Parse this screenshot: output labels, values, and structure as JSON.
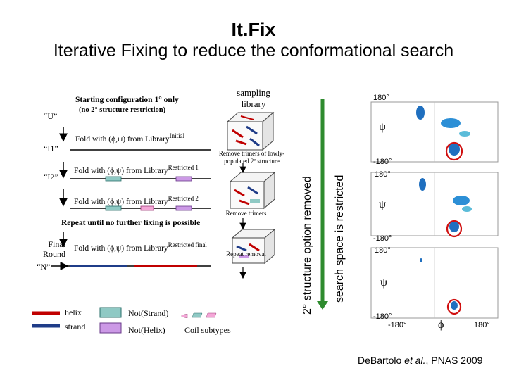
{
  "title": "It.Fix",
  "subtitle": "Iterative Fixing to reduce the conformational search",
  "left_panel": {
    "start_config": "Starting configuration  1° only",
    "start_config_sub": "(no 2° structure restriction)",
    "label_u": "“U”",
    "label_i1": "“I1”",
    "label_i2": "“I2”",
    "label_n": "“N”",
    "label_final_round": "Final Round",
    "fold_initial": "Fold with (ϕ,ψ) from Library",
    "fold_initial_sup": "Initial",
    "fold_r1": "Fold with (ϕ,ψ) from Library",
    "fold_r1_sup": "Restricted 1",
    "fold_r2": "Fold with (ϕ,ψ) from Library",
    "fold_r2_sup": "Restricted 2",
    "repeat_text": "Repeat until no further fixing is possible",
    "fold_final": "Fold with (ϕ,ψ) from Library",
    "fold_final_sup": "Restricted final"
  },
  "library_column": {
    "header": "sampling library",
    "remove_trimers_lowly": "Remove trimers of lowly-populated 2º structure",
    "remove_trimers": "Remove trimers",
    "repeat_removal": "Repeat removal"
  },
  "vertical_labels": {
    "removed": "2° structure option removed",
    "restricted": "search space is restricted"
  },
  "legend": {
    "helix": "helix",
    "strand": "strand",
    "not_strand": "Not(Strand)",
    "not_helix": "Not(Helix)",
    "coil_subtypes": "Coil subtypes"
  },
  "ramachandran": {
    "top_label": "180°",
    "bottom_label": "-180°",
    "psi": "ψ",
    "phi": "ϕ",
    "x_left": "-180°",
    "x_right": "180°"
  },
  "citation": {
    "authors": "DeBartolo",
    "etal": "et al.",
    "journal": ", PNAS 2009"
  },
  "colors": {
    "arrow_green": "#2e8b2e",
    "helix_red": "#c00000",
    "strand_blue": "#1f3c88",
    "not_strand_teal": "#8fc9c4",
    "not_helix_purple": "#cc99e6",
    "coil_pink": "#f4a6d7"
  }
}
